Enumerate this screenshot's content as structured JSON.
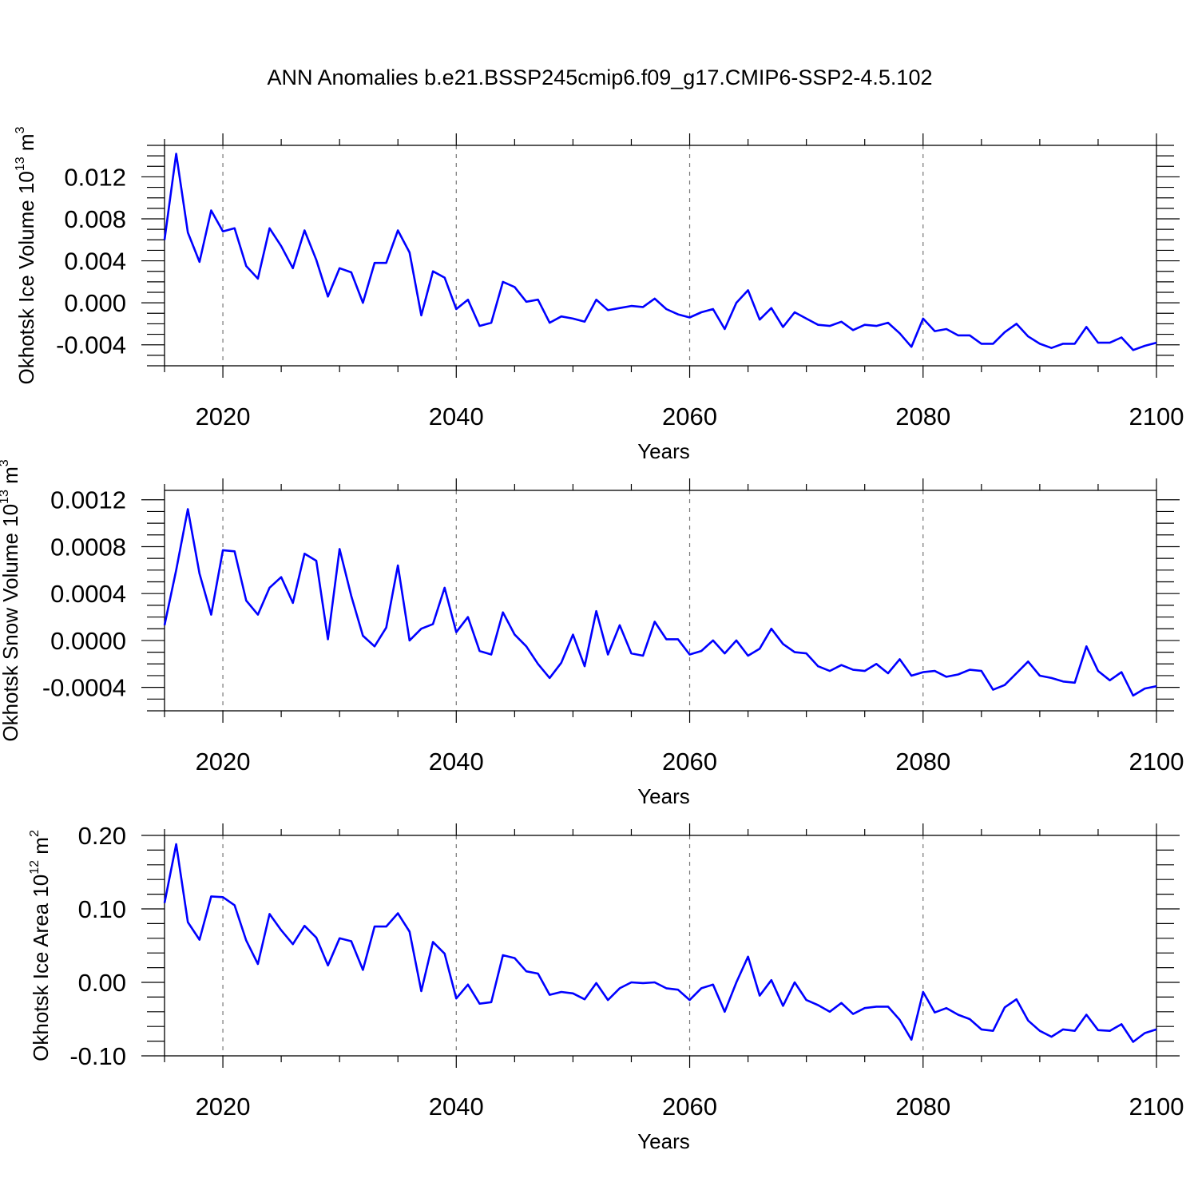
{
  "title": "ANN Anomalies b.e21.BSSP245cmip6.f09_g17.CMIP6-SSP2-4.5.102",
  "colors": {
    "line": "#0000ff",
    "axis": "#000000",
    "grid": "#777777"
  },
  "chart_data": [
    {
      "type": "line",
      "ylabel_main": "Okhotsk Ice Volume 10",
      "ylabel_exp": "13",
      "ylabel_unit": " m",
      "ylabel_unit_exp": "3",
      "xlabel": "Years",
      "xlim": [
        2015,
        2100
      ],
      "ylim": [
        -0.006,
        0.015
      ],
      "xticks": [
        2020,
        2040,
        2060,
        2080,
        2100
      ],
      "xtick_labels": [
        "2020",
        "2040",
        "2060",
        "2080",
        "2100"
      ],
      "yticks": [
        -0.004,
        0.0,
        0.004,
        0.008,
        0.012
      ],
      "ytick_labels": [
        "-0.004",
        "0.000",
        "0.004",
        "0.008",
        "0.012"
      ],
      "yminor_step": 0.001,
      "x_start": 2015,
      "values": [
        0.006,
        0.0142,
        0.0067,
        0.0039,
        0.0088,
        0.0068,
        0.0071,
        0.0035,
        0.0023,
        0.0071,
        0.0054,
        0.0033,
        0.0069,
        0.0041,
        0.0006,
        0.0033,
        0.0029,
        0.0,
        0.0038,
        0.0038,
        0.0069,
        0.0048,
        -0.0012,
        0.003,
        0.0024,
        -0.0006,
        0.0003,
        -0.0022,
        -0.0019,
        0.002,
        0.0015,
        0.0001,
        0.0003,
        -0.0019,
        -0.0013,
        -0.0015,
        -0.0018,
        0.0003,
        -0.0007,
        -0.0005,
        -0.0003,
        -0.0004,
        0.0004,
        -0.0006,
        -0.0011,
        -0.0014,
        -0.0009,
        -0.0006,
        -0.0025,
        0.0,
        0.0012,
        -0.0016,
        -0.0005,
        -0.0023,
        -0.0009,
        -0.0015,
        -0.0021,
        -0.0022,
        -0.0018,
        -0.0026,
        -0.0021,
        -0.0022,
        -0.0019,
        -0.0029,
        -0.0042,
        -0.0015,
        -0.0027,
        -0.0025,
        -0.0031,
        -0.0031,
        -0.0039,
        -0.0039,
        -0.0028,
        -0.002,
        -0.0032,
        -0.0039,
        -0.0043,
        -0.0039,
        -0.0039,
        -0.0023,
        -0.0038,
        -0.0038,
        -0.0033,
        -0.0045,
        -0.0041,
        -0.0038
      ]
    },
    {
      "type": "line",
      "ylabel_main": "Okhotsk Snow Volume 10",
      "ylabel_exp": "13",
      "ylabel_unit": " m",
      "ylabel_unit_exp": "3",
      "xlabel": "Years",
      "xlim": [
        2015,
        2100
      ],
      "ylim": [
        -0.0006,
        0.00128
      ],
      "xticks": [
        2020,
        2040,
        2060,
        2080,
        2100
      ],
      "xtick_labels": [
        "2020",
        "2040",
        "2060",
        "2080",
        "2100"
      ],
      "yticks": [
        -0.0004,
        0.0,
        0.0004,
        0.0008,
        0.0012
      ],
      "ytick_labels": [
        "-0.0004",
        "0.0000",
        "0.0004",
        "0.0008",
        "0.0012"
      ],
      "yminor_step": 0.0001,
      "x_start": 2015,
      "values": [
        0.00013,
        0.0006,
        0.00112,
        0.00057,
        0.00022,
        0.00077,
        0.00076,
        0.00034,
        0.00022,
        0.00045,
        0.00054,
        0.00032,
        0.00074,
        0.00068,
        1e-05,
        0.00078,
        0.00038,
        4e-05,
        -5e-05,
        0.00011,
        0.00064,
        0.0,
        0.0001,
        0.00014,
        0.00045,
        7e-05,
        0.0002,
        -9e-05,
        -0.00012,
        0.00024,
        5e-05,
        -5e-05,
        -0.0002,
        -0.00032,
        -0.00019,
        5e-05,
        -0.00022,
        0.00025,
        -0.00012,
        0.00013,
        -0.00011,
        -0.00013,
        0.00016,
        1e-05,
        1e-05,
        -0.00012,
        -9e-05,
        0.0,
        -0.00011,
        0.0,
        -0.00013,
        -7e-05,
        0.0001,
        -3e-05,
        -0.0001,
        -0.00011,
        -0.00022,
        -0.00026,
        -0.00021,
        -0.00025,
        -0.00026,
        -0.0002,
        -0.00028,
        -0.00016,
        -0.0003,
        -0.00027,
        -0.00026,
        -0.00031,
        -0.00029,
        -0.00025,
        -0.00026,
        -0.00042,
        -0.00038,
        -0.00028,
        -0.00018,
        -0.0003,
        -0.00032,
        -0.00035,
        -0.00036,
        -5e-05,
        -0.00026,
        -0.00034,
        -0.00027,
        -0.00047,
        -0.00041,
        -0.00039
      ]
    },
    {
      "type": "line",
      "ylabel_main": "Okhotsk Ice Area 10",
      "ylabel_exp": "12",
      "ylabel_unit": " m",
      "ylabel_unit_exp": "2",
      "xlabel": "Years",
      "xlim": [
        2015,
        2100
      ],
      "ylim": [
        -0.1,
        0.2
      ],
      "xticks": [
        2020,
        2040,
        2060,
        2080,
        2100
      ],
      "xtick_labels": [
        "2020",
        "2040",
        "2060",
        "2080",
        "2100"
      ],
      "yticks": [
        -0.1,
        0.0,
        0.1,
        0.2
      ],
      "ytick_labels": [
        "-0.10",
        "0.00",
        "0.10",
        "0.20"
      ],
      "yminor_step": 0.02,
      "x_start": 2015,
      "values": [
        0.108,
        0.188,
        0.082,
        0.058,
        0.117,
        0.116,
        0.105,
        0.057,
        0.025,
        0.093,
        0.071,
        0.052,
        0.077,
        0.061,
        0.023,
        0.06,
        0.056,
        0.017,
        0.076,
        0.076,
        0.094,
        0.069,
        -0.012,
        0.055,
        0.039,
        -0.022,
        -0.003,
        -0.029,
        -0.027,
        0.037,
        0.033,
        0.015,
        0.012,
        -0.017,
        -0.013,
        -0.015,
        -0.023,
        -0.001,
        -0.024,
        -0.008,
        0.0,
        -0.001,
        0.0,
        -0.008,
        -0.01,
        -0.024,
        -0.008,
        -0.003,
        -0.04,
        0.0,
        0.035,
        -0.018,
        0.003,
        -0.032,
        0.0,
        -0.024,
        -0.031,
        -0.04,
        -0.028,
        -0.043,
        -0.035,
        -0.033,
        -0.033,
        -0.051,
        -0.078,
        -0.013,
        -0.041,
        -0.035,
        -0.044,
        -0.05,
        -0.064,
        -0.066,
        -0.034,
        -0.023,
        -0.052,
        -0.066,
        -0.074,
        -0.064,
        -0.066,
        -0.044,
        -0.065,
        -0.066,
        -0.057,
        -0.081,
        -0.069,
        -0.064
      ]
    }
  ]
}
